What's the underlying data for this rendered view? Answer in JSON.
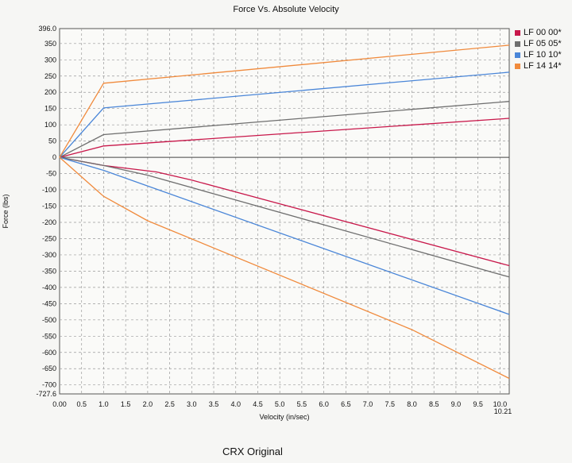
{
  "chart_data": {
    "type": "line",
    "title": "Force Vs. Absolute Velocity",
    "xlabel": "Velocity (in/sec)",
    "ylabel": "Force (lbs)",
    "xlim": [
      0,
      10.21
    ],
    "ylim": [
      -727.6,
      396.0
    ],
    "x_ticks": [
      "0.00",
      "0.5",
      "1.0",
      "1.5",
      "2.0",
      "2.5",
      "3.0",
      "3.5",
      "4.0",
      "4.5",
      "5.0",
      "5.5",
      "6.0",
      "6.5",
      "7.0",
      "7.5",
      "8.0",
      "8.5",
      "9.0",
      "9.5",
      "10.0",
      "10.21"
    ],
    "y_ticks": [
      "396.0",
      "350",
      "300",
      "250",
      "200",
      "150",
      "100",
      "50",
      "0",
      "-50",
      "-100",
      "-150",
      "-200",
      "-250",
      "-300",
      "-350",
      "-400",
      "-450",
      "-500",
      "-550",
      "-600",
      "-650",
      "-700",
      "-727.6"
    ],
    "grid": true,
    "legend_position": "right",
    "series": [
      {
        "name": "LF 00 00*",
        "color": "#c8174a",
        "rebound": [
          [
            0,
            0
          ],
          [
            1.0,
            35
          ],
          [
            10.21,
            120
          ]
        ],
        "compression": [
          [
            0,
            0
          ],
          [
            1.0,
            -25
          ],
          [
            2.2,
            -45
          ],
          [
            3.0,
            -70
          ],
          [
            10.21,
            -333
          ]
        ]
      },
      {
        "name": "LF 05 05*",
        "color": "#6e6e6e",
        "rebound": [
          [
            0,
            0
          ],
          [
            1.0,
            70
          ],
          [
            10.21,
            172
          ]
        ],
        "compression": [
          [
            0,
            0
          ],
          [
            1.0,
            -25
          ],
          [
            2.0,
            -55
          ],
          [
            10.21,
            -368
          ]
        ]
      },
      {
        "name": "LF 10 10*",
        "color": "#4a86d8",
        "rebound": [
          [
            0,
            0
          ],
          [
            1.0,
            152
          ],
          [
            10.21,
            262
          ]
        ],
        "compression": [
          [
            0,
            0
          ],
          [
            1.0,
            -40
          ],
          [
            10.21,
            -483
          ]
        ]
      },
      {
        "name": "LF 14 14*",
        "color": "#f08a3c",
        "rebound": [
          [
            0,
            0
          ],
          [
            1.0,
            228
          ],
          [
            10.21,
            345
          ]
        ],
        "compression": [
          [
            0,
            0
          ],
          [
            1.0,
            -120
          ],
          [
            2.0,
            -195
          ],
          [
            8.0,
            -530
          ],
          [
            10.21,
            -680
          ]
        ]
      }
    ]
  },
  "caption": "CRX  Original"
}
